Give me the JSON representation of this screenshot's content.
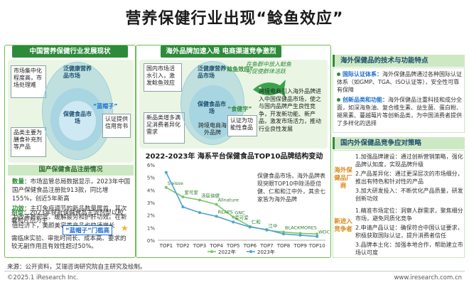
{
  "title": "营养保健行业出现“鲶鱼效应”",
  "panel1": {
    "header": "中国营养保健行业发展现状",
    "venn": {
      "left_box": "市场集中化程度高，市场处理难",
      "left_box2": "品类主要为膳食补充剂等产品",
      "outer": "泛健康营养品市场",
      "inner": "保健食品市场",
      "tag": "“蓝帽子”",
      "right_box": "认证提供信用背书"
    },
    "sub_header": "国产保健食品注册情况",
    "quantity_label": "数量：",
    "quantity_text": "市场监管总局数据显示，2023年中国国产保健食品注册批913款，同比增155%，创近5年新高",
    "function_label": "功效：",
    "function_text": "主打免疫调节的新品数量居首，其次为改善骨密度、缓解疲劳和护肝功效。在新值经济下，美颜美容类产品也快速增长",
    "dosage_label": "剂型：",
    "dosage_text": "2023年获批保健食品主流剂型以胶囊和片剂为主",
    "tag2": "“蓝帽子”门槛高",
    "bottom_text": "需临床实验、审批时间长、成本高、要求的较无副作用且有效性超过50%。"
  },
  "panel2": {
    "header": "海外品牌加速入局 电商渠道竞争激烈",
    "venn": {
      "left_box": "国内市场活水引入，激发鲶鱼效应",
      "left_box2": "新品类增多满足消费者异化需求",
      "outer": "泛健康营养品市场",
      "inner": "保健食品市场",
      "cross": "跨境电商海外品牌",
      "fish_label": "“鲶鱼效应”",
      "fish_note": "在鱼群中放入鲶鱼可促使群体活跃",
      "shixiang_label": "“食健字”",
      "shixiang_text": "认证为功能性食品",
      "right_text": "跨境电商引入海外品牌进入中国保健品市场，使之与国内品牌产生良性竞争，开发新功能、新产品，激发市场活力，推动行业良性发展"
    },
    "chart_title": "2022-2023年 海系平台保健食品TOP10品牌结构变动",
    "chart_note": "保健食品市场，海外品牌表现突眼TOP10中除汤臣倍健、仁和和江中外，其余七家皆为海外品牌"
  },
  "chart_data": {
    "type": "line",
    "title": "2022-2023年 海系平台保健食品TOP10品牌结构变动",
    "categories": [
      "TOP1",
      "TOP2",
      "TOP3",
      "TOP4",
      "TOP5",
      "TOP6",
      "TOP7",
      "TOP8",
      "TOP9",
      "TOP10"
    ],
    "ylim": [
      0,
      6
    ],
    "yticks": [
      "0%",
      "1%",
      "2%",
      "3%",
      "4%",
      "5%",
      "6%"
    ],
    "series": [
      {
        "name": "2022年",
        "color": "#7cc66a",
        "values": [
          4.2,
          3.45,
          3.2,
          2.85,
          1.85,
          1.1,
          0.8,
          0.65,
          0.55,
          0.5
        ],
        "labels": [
          "Swisse",
          "爱可爱",
          "汤臣倍健",
          "Allnature",
          "GNC",
          "仁和",
          "江中",
          "BLACKMORES",
          "",
          ""
        ]
      },
      {
        "name": "2023年",
        "color": "#4fa3d1",
        "values": [
          5.4,
          2.65,
          2.2,
          1.9,
          1.45,
          1.05,
          0.85,
          0.5,
          0.4,
          0.3
        ],
        "labels": [
          "",
          "",
          "",
          "REAPS",
          "爱可爱",
          "",
          "",
          "",
          "",
          "WDCYH"
        ]
      }
    ],
    "extra_labels": [
      "Swisse",
      "汤臣倍健",
      "Allnature",
      "REAPS",
      "泰乐力斯",
      "GNC",
      "泰乐力斯",
      "BLACKMORES"
    ]
  },
  "panel3": {
    "header1": "海外保健品的技术与功能特点",
    "item1_label": "国际认证体系：",
    "item1_text": "海外保健品牌通过各种国际认证体系（如GMP、TGA、ISO认证等），安全性可靠有保障",
    "item2_label": "创新品类和功能：",
    "item2_text": "海外保健品注重科技和成分全面，如深海鱼油、复合维生素、益生菌、蛋白粉、褪黑素、蔓越莓片等创新品类，为中国消费者提供了多样化的选择",
    "header2": "国内外保健品竞争应对策略",
    "side1": "海外保健品厂商",
    "side2": "新进入竞争者",
    "s1": "1.加强品牌建设：通过创新营销策略，强化品牌认知度，实现品牌升级",
    "s2": "2.产品差异化：通过更深层次的市场细分，推出有特色和针对性的产品",
    "s3": "3.加大研发投入：不断优化产品质量，研发创新功效",
    "s4": "1.精准市场定位：洞察人群需求，聚焦细分市场，避免同质化竞争",
    "s5": "2.申请产品认证：确保符合中国认证要求，积极获取国际认证，提升消费者信任",
    "s6": "3.品牌本土化：加强本地合作，帮助建立市场认可度"
  },
  "footer": {
    "source": "来源：公开资料，艾瑞咨询研究院自主研究及绘制。",
    "left": "©2025.1 iResearch Inc.",
    "right": "www.iresearch.com.cn"
  }
}
